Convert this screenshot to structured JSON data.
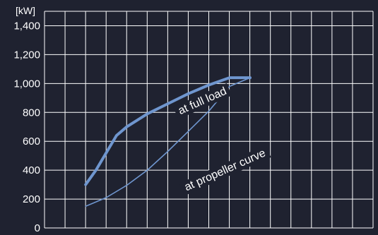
{
  "chart_data": {
    "type": "line",
    "y_unit_label": "[kW]",
    "ylim": [
      0,
      1500
    ],
    "y_ticks": [
      "0",
      "200",
      "400",
      "600",
      "800",
      "1,000",
      "1,200",
      "1,400"
    ],
    "y_tick_values": [
      0,
      200,
      400,
      600,
      800,
      1000,
      1200,
      1400
    ],
    "x_grid_divisions": 16,
    "grid": true,
    "series": [
      {
        "label": "at full load",
        "color": "#6f96cf",
        "points": [
          [
            2,
            300
          ],
          [
            2.5,
            400
          ],
          [
            3,
            520
          ],
          [
            3.5,
            640
          ],
          [
            4,
            700
          ],
          [
            5,
            790
          ],
          [
            6,
            860
          ],
          [
            7,
            930
          ],
          [
            8,
            990
          ],
          [
            9,
            1040
          ],
          [
            9.5,
            1040
          ],
          [
            10,
            1040
          ]
        ]
      },
      {
        "label": "at propeller curve",
        "color": "#6f96cf",
        "points": [
          [
            2,
            150
          ],
          [
            3,
            210
          ],
          [
            4,
            295
          ],
          [
            5,
            400
          ],
          [
            6,
            530
          ],
          [
            7,
            670
          ],
          [
            8,
            810
          ],
          [
            9,
            980
          ],
          [
            10,
            1040
          ]
        ]
      }
    ]
  }
}
